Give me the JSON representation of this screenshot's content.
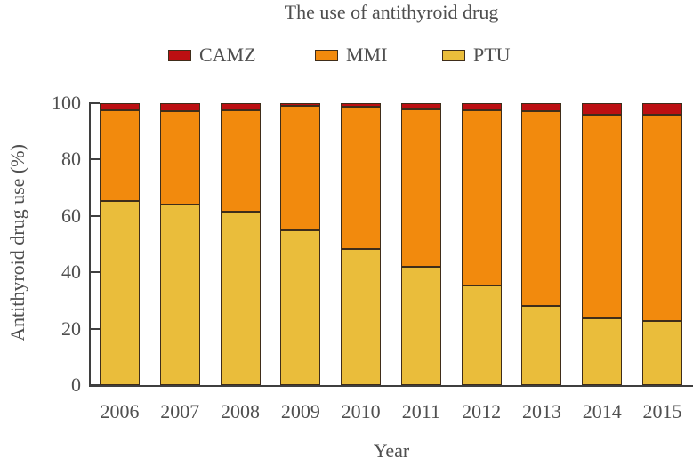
{
  "title": "The use of antithyroid drug",
  "legend": {
    "items": [
      "CAMZ",
      "MMI",
      "PTU"
    ]
  },
  "axes": {
    "y_label": "Antithyroid drug use (%)",
    "x_label": "Year",
    "y_ticks": [
      0,
      20,
      40,
      60,
      80,
      100
    ]
  },
  "colors": {
    "CAMZ": "#bc0f12",
    "MMI": "#f28a0d",
    "PTU": "#eabd3b",
    "axis": "#3f3f3f",
    "text": "#4f4f4f",
    "bar_outline": "#3f2d1a"
  },
  "chart_data": {
    "type": "bar",
    "stacked": true,
    "title": "The use of antithyroid drug",
    "xlabel": "Year",
    "ylabel": "Antithyroid drug use (%)",
    "ylim": [
      0,
      100
    ],
    "grid": false,
    "legend_position": "top",
    "categories": [
      "2006",
      "2007",
      "2008",
      "2009",
      "2010",
      "2011",
      "2012",
      "2013",
      "2014",
      "2015"
    ],
    "series": [
      {
        "name": "PTU",
        "color": "#eabd3b",
        "values": [
          65.4,
          64.1,
          61.5,
          55.0,
          48.2,
          42.1,
          35.2,
          28.1,
          23.7,
          22.6
        ]
      },
      {
        "name": "MMI",
        "color": "#f28a0d",
        "values": [
          32.0,
          33.0,
          35.9,
          44.2,
          50.7,
          55.6,
          62.2,
          69.0,
          72.2,
          73.3
        ]
      },
      {
        "name": "CAMZ",
        "color": "#bc0f12",
        "values": [
          2.6,
          2.9,
          2.6,
          0.8,
          1.1,
          2.3,
          2.6,
          2.9,
          4.1,
          4.1
        ]
      }
    ]
  }
}
